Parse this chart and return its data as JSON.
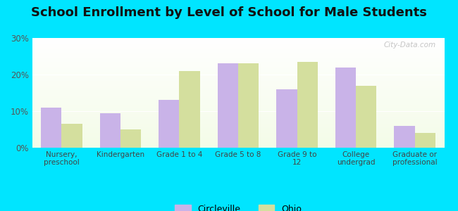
{
  "title": "School Enrollment by Level of School for Male Students",
  "categories": [
    "Nursery,\npreschool",
    "Kindergarten",
    "Grade 1 to 4",
    "Grade 5 to 8",
    "Grade 9 to\n12",
    "College\nundergrad",
    "Graduate or\nprofessional"
  ],
  "circleville": [
    11,
    9.5,
    13,
    23,
    16,
    22,
    6
  ],
  "ohio": [
    6.5,
    5,
    21,
    23,
    23.5,
    17,
    4
  ],
  "circleville_color": "#c9b3e8",
  "ohio_color": "#d4df9e",
  "background_color": "#00e5ff",
  "title_fontsize": 13,
  "ylim": [
    0,
    30
  ],
  "yticks": [
    0,
    10,
    20,
    30
  ],
  "bar_width": 0.35,
  "legend_label1": "Circleville",
  "legend_label2": "Ohio",
  "watermark": "City-Data.com"
}
